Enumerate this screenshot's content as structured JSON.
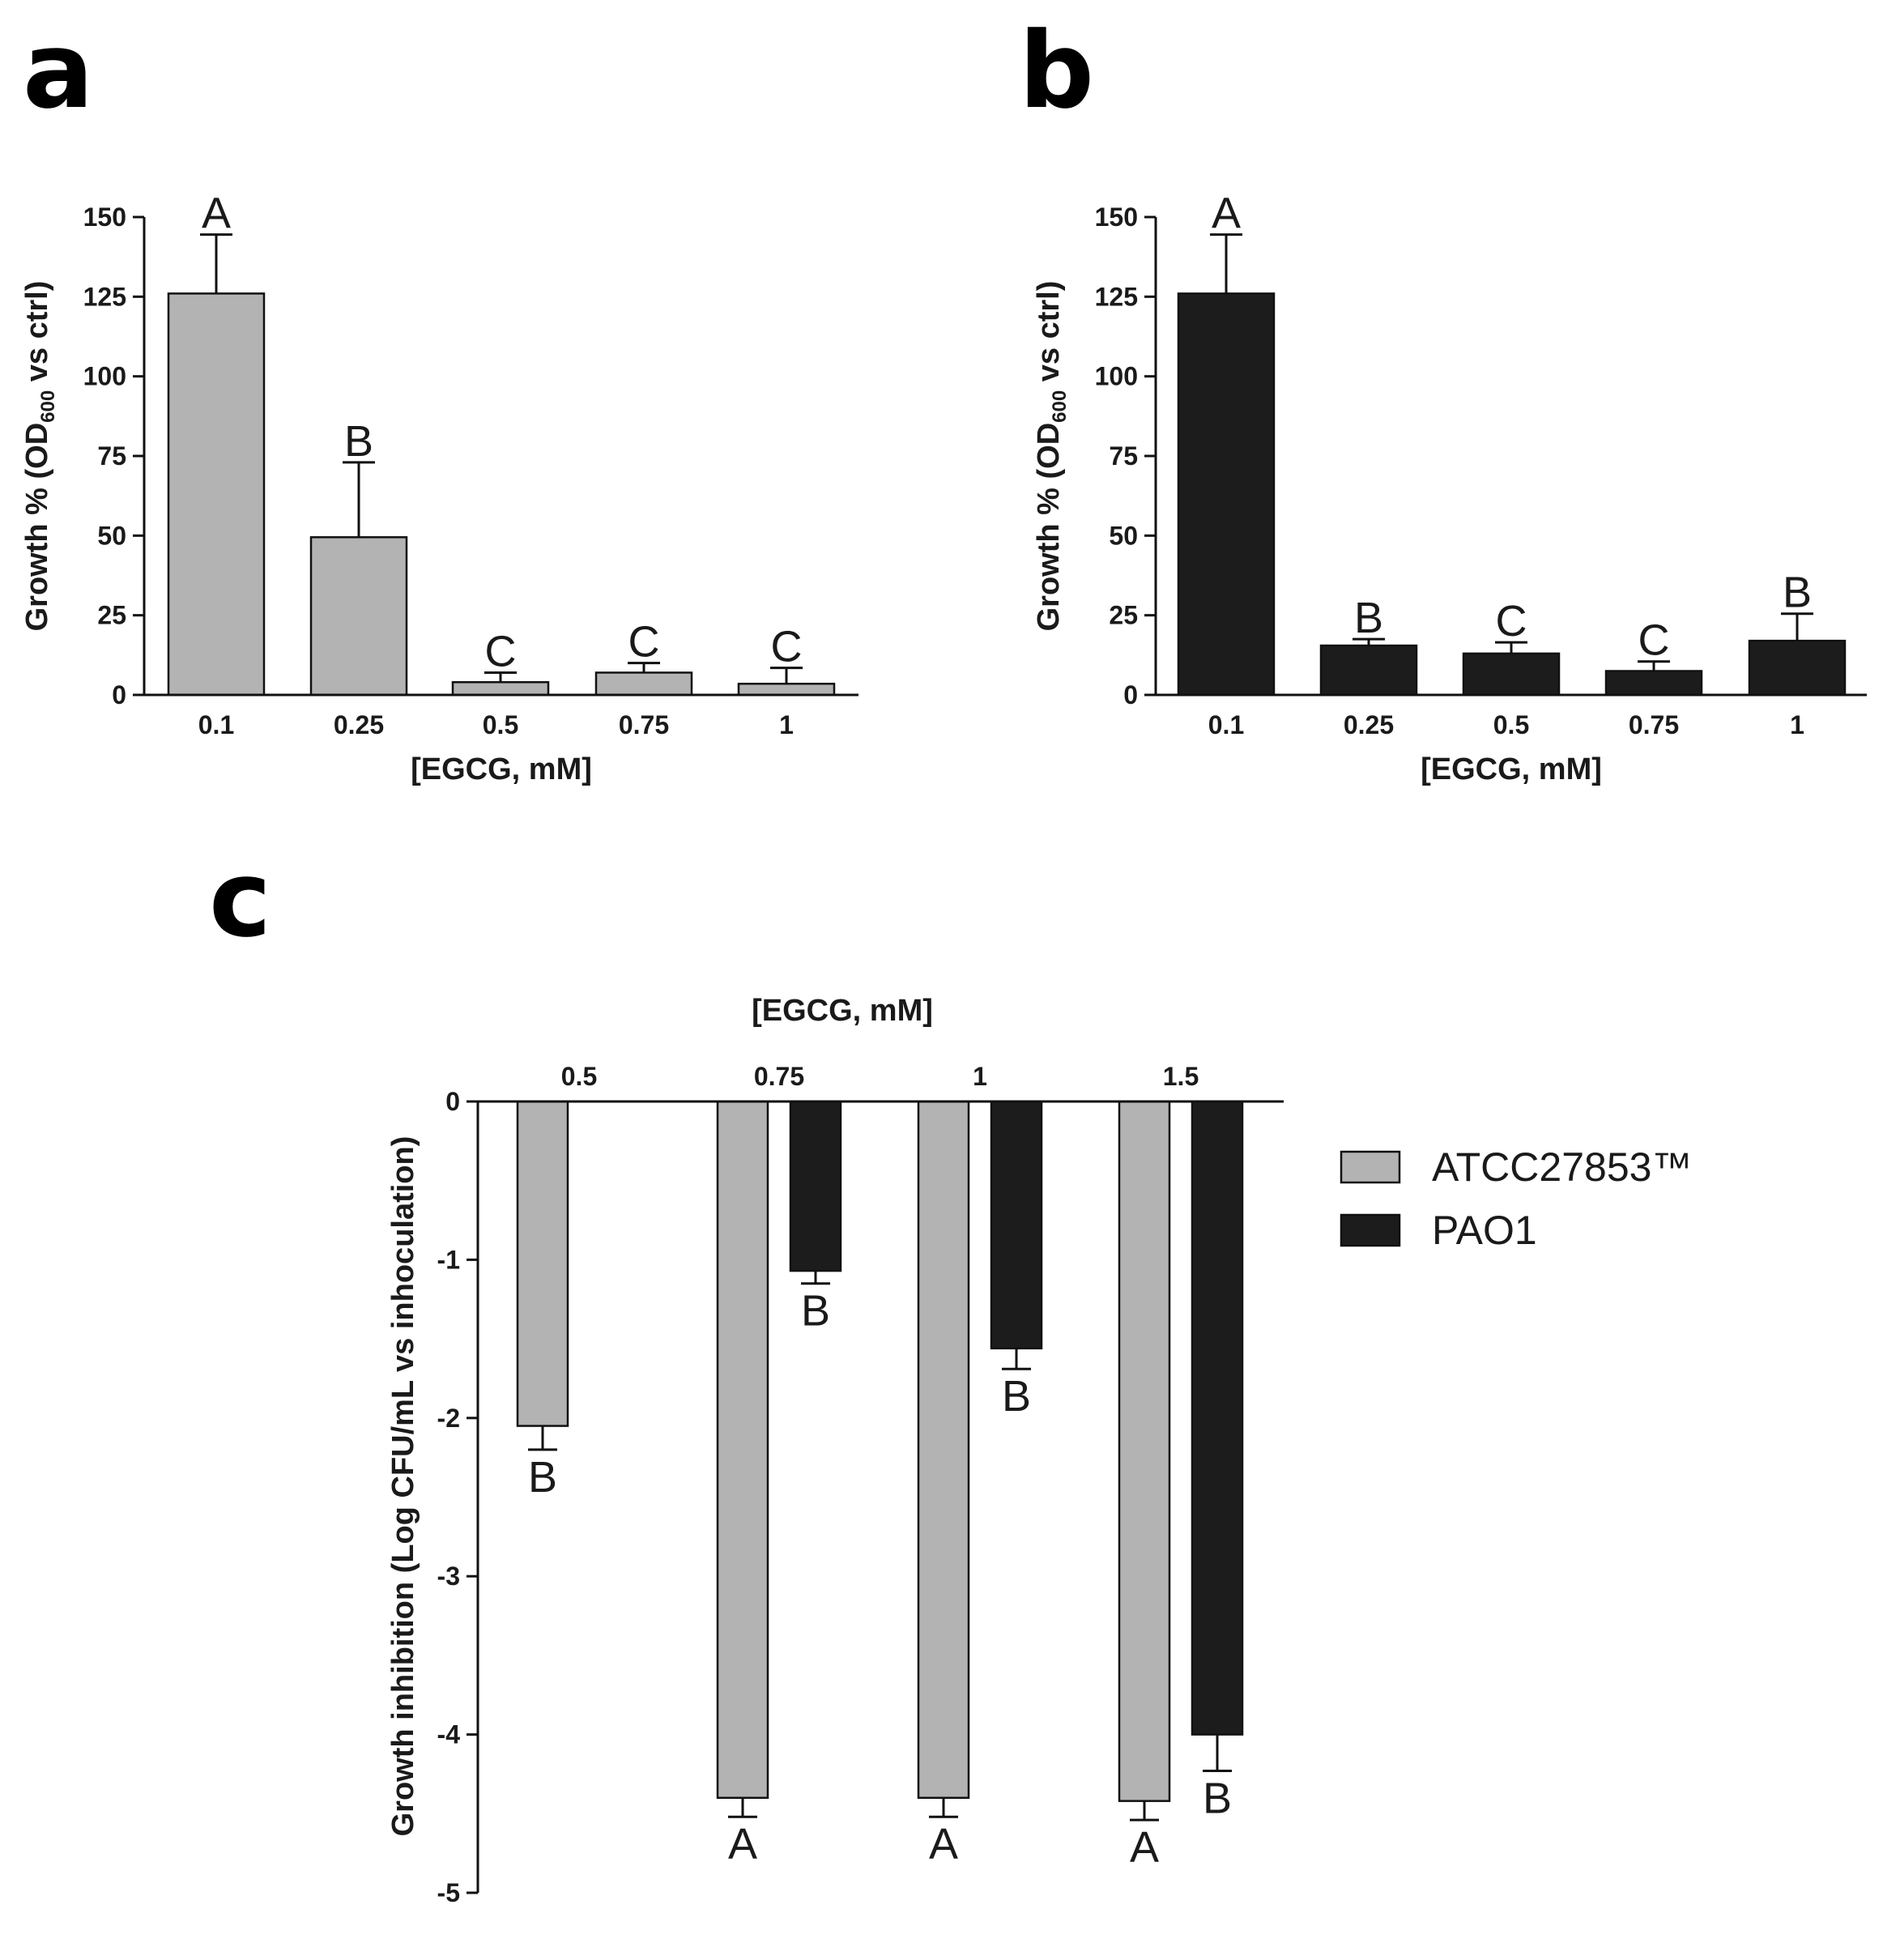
{
  "panels": {
    "a": "a",
    "b": "b",
    "c": "c"
  },
  "colors": {
    "gray": "#b3b3b3",
    "black": "#1c1c1c",
    "axis": "#111111"
  },
  "chart_data": [
    {
      "id": "a",
      "type": "bar",
      "categories": [
        "0.1",
        "0.25",
        "0.5",
        "0.75",
        "1"
      ],
      "values": [
        126,
        49.5,
        4,
        7,
        3.5
      ],
      "errors": [
        18.5,
        23.5,
        3,
        3,
        5
      ],
      "significance": [
        "A",
        "B",
        "C",
        "C",
        "C"
      ],
      "xlabel": "[EGCG, mM]",
      "ylabel_main": "Growth % (OD",
      "ylabel_sub": "600",
      "ylabel_tail": " vs ctrl)",
      "ylim": [
        0,
        150
      ],
      "yticks": [
        0,
        25,
        50,
        75,
        100,
        125,
        150
      ],
      "ytick_labels": [
        "0",
        "25",
        "50",
        "75",
        "100",
        "125",
        "150"
      ],
      "color": "gray"
    },
    {
      "id": "b",
      "type": "bar",
      "categories": [
        "0.1",
        "0.25",
        "0.5",
        "0.75",
        "1"
      ],
      "values": [
        126,
        15.5,
        13,
        7.5,
        17
      ],
      "errors": [
        18.5,
        2,
        3.5,
        3,
        8.5
      ],
      "significance": [
        "A",
        "B",
        "C",
        "C",
        "B"
      ],
      "xlabel": "[EGCG, mM]",
      "ylabel_main": "Growth % (OD",
      "ylabel_sub": "600",
      "ylabel_tail": " vs ctrl)",
      "ylim": [
        0,
        150
      ],
      "yticks": [
        0,
        25,
        50,
        75,
        100,
        125,
        150
      ],
      "ytick_labels": [
        "0",
        "25",
        "50",
        "75",
        "100",
        "125",
        "150"
      ],
      "color": "black"
    },
    {
      "id": "c",
      "type": "bar",
      "categories": [
        "0.5",
        "0.75",
        "1",
        "1.5"
      ],
      "series": [
        {
          "name": "ATCC27853™",
          "color": "gray",
          "values": [
            -2.05,
            -4.4,
            -4.4,
            -4.42
          ],
          "errors": [
            0.15,
            0.12,
            0.12,
            0.12
          ],
          "significance": [
            "B",
            "A",
            "A",
            "A"
          ]
        },
        {
          "name": "PAO1",
          "color": "black",
          "values": [
            null,
            -1.07,
            -1.56,
            -4.0
          ],
          "errors": [
            null,
            0.08,
            0.13,
            0.23
          ],
          "significance": [
            "",
            "B",
            "B",
            "B"
          ]
        }
      ],
      "xlabel": "[EGCG, mM]",
      "ylabel": "Growth inhibition (Log CFU/mL vs inhoculation)",
      "ylim": [
        -5,
        0
      ],
      "yticks": [
        0,
        -1,
        -2,
        -3,
        -4,
        -5
      ],
      "ytick_labels": [
        "0",
        "-1",
        "-2",
        "-3",
        "-4",
        "-5"
      ],
      "legend_position": "right"
    }
  ]
}
